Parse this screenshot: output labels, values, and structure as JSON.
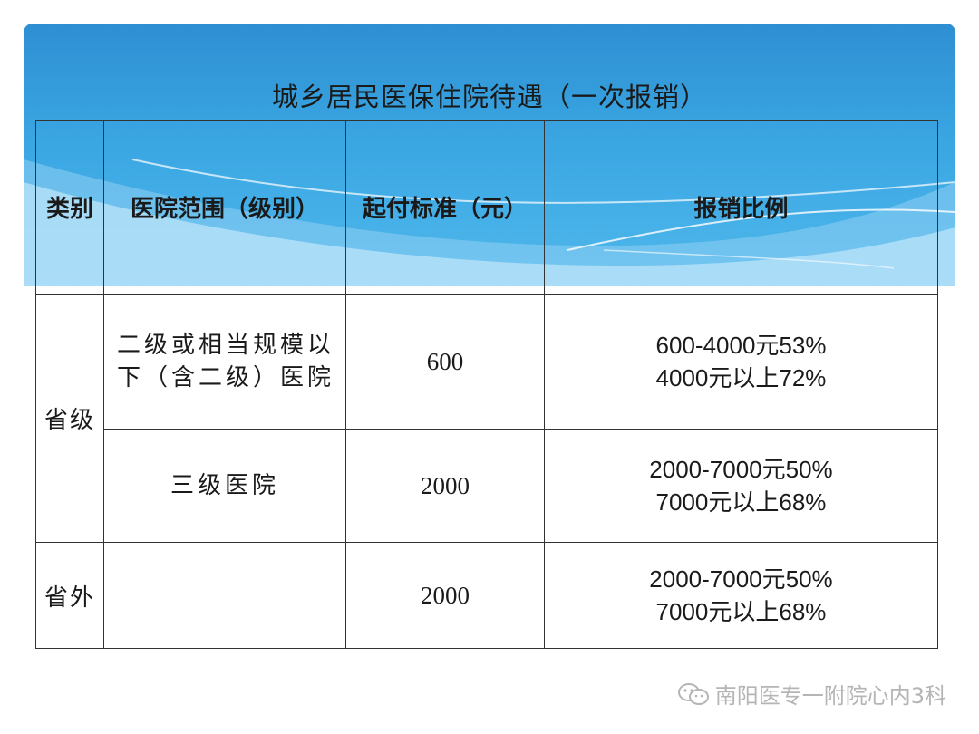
{
  "title": "城乡居民医保住院待遇（一次报销）",
  "headers": [
    "类别",
    "医院范围（级别）",
    "起付标准（元）",
    "报销比例"
  ],
  "rows": [
    {
      "category": "省级",
      "scope_line1": "二级或相当规模以",
      "scope_line2": "下（含二级）医院",
      "threshold": "600",
      "ratio_line1": "600-4000元53%",
      "ratio_line2": "4000元以上72%"
    },
    {
      "scope": "三级医院",
      "threshold": "2000",
      "ratio_line1": "2000-7000元50%",
      "ratio_line2": "7000元以上68%"
    },
    {
      "category": "省外",
      "scope": "",
      "threshold": "2000",
      "ratio_line1": "2000-7000元50%",
      "ratio_line2": "7000元以上68%"
    }
  ],
  "watermark": "南阳医专一附院心内3科",
  "icons": {
    "watermark": "wechat-icon"
  },
  "colors": {
    "banner_top": "#2e8fd2",
    "banner_bottom": "#4fb8ec",
    "border": "#333333"
  }
}
